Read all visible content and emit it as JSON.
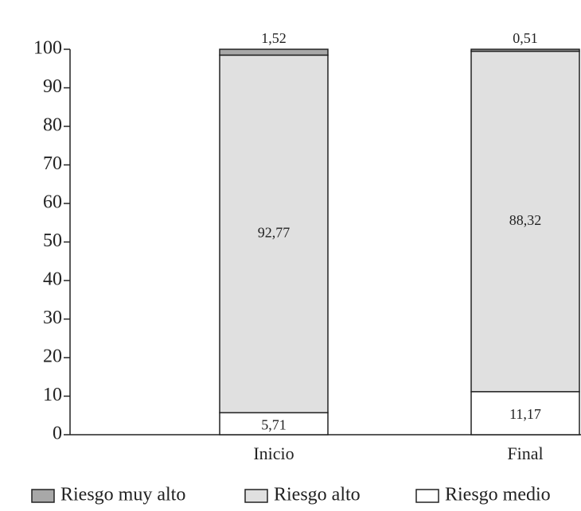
{
  "chart_data": {
    "type": "stacked_bar",
    "categories": [
      "Inicio",
      "Final"
    ],
    "series": [
      {
        "name": "Riesgo medio",
        "color": "#ffffff",
        "values": [
          5.71,
          11.17
        ],
        "value_labels": [
          "5,71",
          "11,17"
        ]
      },
      {
        "name": "Riesgo alto",
        "color": "#e0e0e0",
        "values": [
          92.77,
          88.32
        ],
        "value_labels": [
          "92,77",
          "88,32"
        ]
      },
      {
        "name": "Riesgo muy alto",
        "color": "#a8a8a8",
        "values": [
          1.52,
          0.51
        ],
        "value_labels": [
          "1,52",
          "0,51"
        ]
      }
    ],
    "ylim": [
      0,
      100
    ],
    "yticks": [
      0,
      10,
      20,
      30,
      40,
      50,
      60,
      70,
      80,
      90,
      100
    ]
  }
}
